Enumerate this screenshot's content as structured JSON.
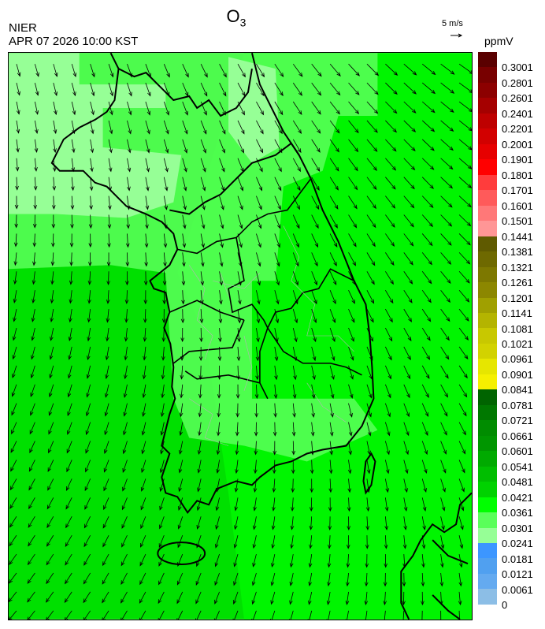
{
  "header": {
    "title_main": "O",
    "title_sub": "3",
    "organization": "NIER",
    "timestamp": "APR 07 2026 10:00 KST",
    "wind_scale_label": "5 m/s",
    "wind_scale_icon": "arrow-right-icon",
    "unit": "ppmV"
  },
  "colorbar": {
    "labels": [
      "0.3001",
      "0.2801",
      "0.2601",
      "0.2401",
      "0.2201",
      "0.2001",
      "0.1901",
      "0.1801",
      "0.1701",
      "0.1601",
      "0.1501",
      "0.1441",
      "0.1381",
      "0.1321",
      "0.1261",
      "0.1201",
      "0.1141",
      "0.1081",
      "0.1021",
      "0.0961",
      "0.0901",
      "0.0841",
      "0.0781",
      "0.0721",
      "0.0661",
      "0.0601",
      "0.0541",
      "0.0481",
      "0.0421",
      "0.0361",
      "0.0301",
      "0.0241",
      "0.0181",
      "0.0121",
      "0.0061",
      "0"
    ],
    "colors_top_to_bottom": [
      "#5a0000",
      "#780000",
      "#8c0000",
      "#a50000",
      "#be0000",
      "#d20000",
      "#e60000",
      "#ff0000",
      "#ff3c3c",
      "#ff5a5a",
      "#ff7878",
      "#ff9696",
      "#5f5a00",
      "#6e6900",
      "#7d7800",
      "#8c8700",
      "#a0a000",
      "#b4b400",
      "#c8c800",
      "#d2d200",
      "#e6e600",
      "#f5f000",
      "#006400",
      "#007800",
      "#008c00",
      "#009600",
      "#00aa00",
      "#00be00",
      "#00d200",
      "#00ff00",
      "#5aff5a",
      "#96ff96",
      "#3c96ff",
      "#50a0f0",
      "#64aaf0",
      "#8cbee6"
    ]
  },
  "map": {
    "field_colors": {
      "low_sea": "#00dc00",
      "main": "#00f000",
      "mid": "#5aff5a",
      "light": "#96ff96"
    },
    "wind_vector_icon": "wind-arrow-icon",
    "coastline_color": "#000000",
    "admin_border_color": "#b4b4b4"
  }
}
